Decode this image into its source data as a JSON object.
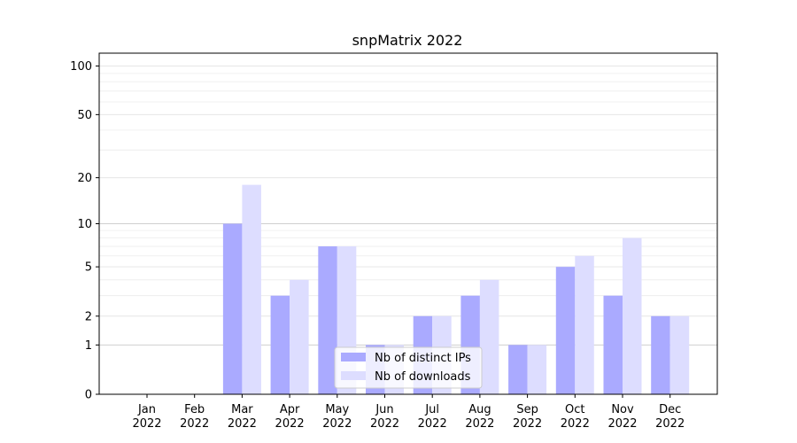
{
  "chart_data": {
    "type": "bar",
    "title": "snpMatrix 2022",
    "xlabel": "",
    "ylabel": "",
    "yscale": "log(1+y)",
    "ylim": [
      0,
      120
    ],
    "yticks": [
      0,
      1,
      2,
      5,
      10,
      20,
      50,
      100
    ],
    "categories": [
      [
        "Jan",
        "2022"
      ],
      [
        "Feb",
        "2022"
      ],
      [
        "Mar",
        "2022"
      ],
      [
        "Apr",
        "2022"
      ],
      [
        "May",
        "2022"
      ],
      [
        "Jun",
        "2022"
      ],
      [
        "Jul",
        "2022"
      ],
      [
        "Aug",
        "2022"
      ],
      [
        "Sep",
        "2022"
      ],
      [
        "Oct",
        "2022"
      ],
      [
        "Nov",
        "2022"
      ],
      [
        "Dec",
        "2022"
      ]
    ],
    "series": [
      {
        "name": "Nb of distinct IPs",
        "color": "#aaaaff",
        "values": [
          0,
          0,
          10,
          3,
          7,
          1,
          2,
          3,
          1,
          5,
          3,
          2
        ]
      },
      {
        "name": "Nb of downloads",
        "color": "#ddddff",
        "values": [
          0,
          0,
          18,
          4,
          7,
          1,
          2,
          4,
          1,
          6,
          8,
          2
        ]
      }
    ],
    "legend": "lower-center",
    "grid": true
  }
}
